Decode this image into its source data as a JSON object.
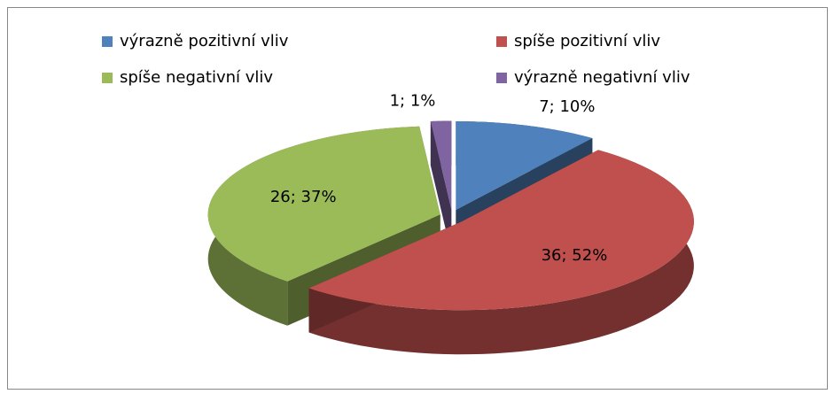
{
  "chart_data": {
    "type": "pie",
    "categories": [
      "výrazně pozitivní vliv",
      "spíše pozitivní vliv",
      "spíše negativní vliv",
      "výrazně negativní vliv"
    ],
    "values": [
      7,
      36,
      26,
      1
    ],
    "value_labels": [
      "7; 10%",
      "36; 52%",
      "26; 37%",
      "1; 1%"
    ],
    "colors": [
      "#4f81bd",
      "#c0504d",
      "#9bbb59",
      "#8064a2"
    ],
    "legend": "top"
  }
}
